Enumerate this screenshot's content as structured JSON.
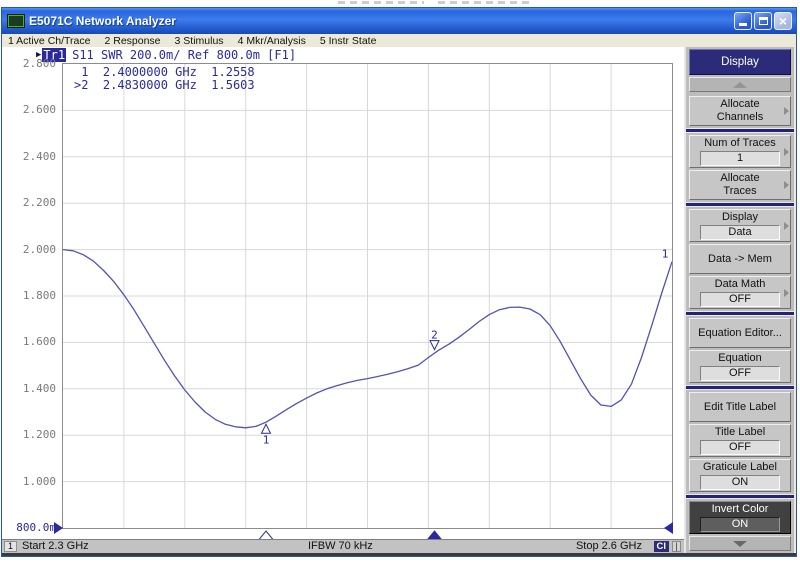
{
  "window": {
    "title": "E5071C Network Analyzer"
  },
  "menu": {
    "items": [
      "1 Active Ch/Trace",
      "2 Response",
      "3 Stimulus",
      "4 Mkr/Analysis",
      "5 Instr State"
    ]
  },
  "trace_header": {
    "active_indicator": "▶",
    "trace_name": "Tr1",
    "description": "S11 SWR 200.0m/ Ref 800.0m [F1]"
  },
  "marker_readout": [
    {
      "id": "1",
      "freq": "2.4000000 GHz",
      "value": "1.2558",
      "active": false
    },
    {
      "id": "2",
      "freq": "2.4830000 GHz",
      "value": "1.5603",
      "active": true
    }
  ],
  "chart_data": {
    "type": "line",
    "parameter": "S11",
    "format": "SWR",
    "scale_per_div": "200.0m/",
    "ref_level": "800.0m",
    "trace_number": "1",
    "xlabel": "Frequency",
    "ylabel": "SWR",
    "xlim": [
      2.3,
      2.6
    ],
    "ylim": [
      0.8,
      2.8
    ],
    "grid": true,
    "x_start_label": "Start 2.3 GHz",
    "x_stop_label": "Stop 2.6 GHz",
    "y_tick_labels": [
      "2.800",
      "2.600",
      "2.400",
      "2.200",
      "2.000",
      "1.800",
      "1.600",
      "1.400",
      "1.200",
      "1.000",
      "800.0m"
    ],
    "x": [
      2.3,
      2.305,
      2.31,
      2.315,
      2.32,
      2.325,
      2.33,
      2.335,
      2.34,
      2.345,
      2.35,
      2.355,
      2.36,
      2.365,
      2.37,
      2.375,
      2.38,
      2.385,
      2.39,
      2.395,
      2.4,
      2.405,
      2.41,
      2.415,
      2.42,
      2.425,
      2.43,
      2.435,
      2.44,
      2.445,
      2.45,
      2.455,
      2.46,
      2.465,
      2.47,
      2.475,
      2.48,
      2.485,
      2.49,
      2.495,
      2.5,
      2.505,
      2.51,
      2.515,
      2.52,
      2.525,
      2.53,
      2.535,
      2.54,
      2.545,
      2.55,
      2.555,
      2.56,
      2.565,
      2.57,
      2.575,
      2.58,
      2.585,
      2.59,
      2.595,
      2.6
    ],
    "series": [
      {
        "name": "Tr1 S11 SWR",
        "values": [
          2.0,
          1.995,
          1.978,
          1.95,
          1.91,
          1.862,
          1.805,
          1.74,
          1.668,
          1.595,
          1.523,
          1.455,
          1.395,
          1.343,
          1.3,
          1.268,
          1.247,
          1.236,
          1.232,
          1.238,
          1.256,
          1.282,
          1.31,
          1.336,
          1.36,
          1.382,
          1.4,
          1.414,
          1.426,
          1.436,
          1.444,
          1.453,
          1.463,
          1.474,
          1.487,
          1.502,
          1.535,
          1.566,
          1.592,
          1.622,
          1.655,
          1.69,
          1.72,
          1.741,
          1.751,
          1.752,
          1.744,
          1.72,
          1.672,
          1.603,
          1.523,
          1.443,
          1.373,
          1.33,
          1.324,
          1.352,
          1.42,
          1.535,
          1.672,
          1.815,
          1.948
        ]
      }
    ],
    "markers": [
      {
        "id": "1",
        "freq_ghz": 2.4,
        "value": 1.2558,
        "active": false
      },
      {
        "id": "2",
        "freq_ghz": 2.483,
        "value": 1.5603,
        "active": true
      }
    ]
  },
  "sidebar": {
    "title": "Display",
    "buttons": [
      {
        "name": "allocate-channels",
        "lines": [
          "Allocate",
          "Channels"
        ],
        "value": null,
        "arrow": true,
        "sep_after": true
      },
      {
        "name": "num-of-traces",
        "lines": [
          "Num of Traces"
        ],
        "value": "1",
        "arrow": true
      },
      {
        "name": "allocate-traces",
        "lines": [
          "Allocate",
          "Traces"
        ],
        "value": null,
        "arrow": true,
        "sep_after": true
      },
      {
        "name": "display-data",
        "lines": [
          "Display"
        ],
        "value": "Data",
        "arrow": true
      },
      {
        "name": "data-to-mem",
        "lines": [
          "Data -> Mem"
        ],
        "value": null,
        "arrow": false
      },
      {
        "name": "data-math",
        "lines": [
          "Data Math"
        ],
        "value": "OFF",
        "arrow": true,
        "sep_after": true
      },
      {
        "name": "equation-editor",
        "lines": [
          "Equation Editor..."
        ],
        "value": null,
        "arrow": false
      },
      {
        "name": "equation",
        "lines": [
          "Equation"
        ],
        "value": "OFF",
        "arrow": false,
        "sep_after": true
      },
      {
        "name": "edit-title-label",
        "lines": [
          "Edit Title Label"
        ],
        "value": null,
        "arrow": false
      },
      {
        "name": "title-label",
        "lines": [
          "Title Label"
        ],
        "value": "OFF",
        "arrow": false
      },
      {
        "name": "graticule-label",
        "lines": [
          "Graticule Label"
        ],
        "value": "ON",
        "arrow": false,
        "sep_after": true
      },
      {
        "name": "invert-color",
        "lines": [
          "Invert Color"
        ],
        "value": "ON",
        "arrow": false,
        "selected": true
      }
    ]
  },
  "status_bar": {
    "channel": "1",
    "start": "Start 2.3 GHz",
    "ifbw": "IFBW 70 kHz",
    "stop": "Stop 2.6 GHz",
    "indicator1": "Cl",
    "indicator2": "|"
  },
  "colors": {
    "trace": "#5252b6",
    "instrument_text": "#2a2aa0",
    "grid": "#d8d8d8",
    "axis_label": "#7a7a7a",
    "sidebar_header_bg": "#2b2b7a",
    "separator_navy": "#232378",
    "status_indicator_bg": "#2b2b7a",
    "selected_button_bg": "#414141"
  }
}
